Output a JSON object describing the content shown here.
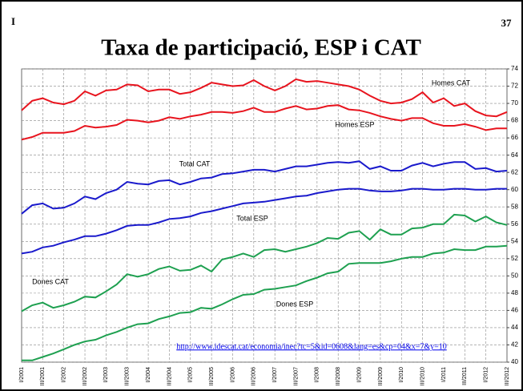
{
  "slide_marker": "I",
  "page_number": "37",
  "chart_data": {
    "type": "line",
    "title": "Taxa de participació, ESP i CAT",
    "source_url": "http://www.idescat.cat/economia/inec?tc=5&id=0608&lang=es&cp=04&x=7&y=10",
    "categories": [
      "I/2001",
      null,
      "III/2001",
      null,
      "I/2002",
      null,
      "III/2002",
      null,
      "I/2003",
      null,
      "III/2003",
      null,
      "I/2004",
      null,
      "III/2004",
      null,
      "I/2005",
      null,
      "III/2005",
      null,
      "I/2006",
      null,
      "III/2006",
      null,
      "I/2007",
      null,
      "III/2007",
      null,
      "I/2008",
      null,
      "III/2008",
      null,
      "I/2009",
      null,
      "III/2009",
      null,
      "I/2010",
      null,
      "III/2010",
      null,
      "I/2011",
      null,
      "III/2011",
      null,
      "I/2012",
      null,
      "III/2012"
    ],
    "series": [
      {
        "name": "Homes CAT",
        "color": "#e8141e",
        "values": [
          69.2,
          70.3,
          70.6,
          70.1,
          69.9,
          70.3,
          71.4,
          70.9,
          71.5,
          71.6,
          72.2,
          72.1,
          71.4,
          71.6,
          71.6,
          71.1,
          71.3,
          71.8,
          72.4,
          72.2,
          72.0,
          72.1,
          72.7,
          72.0,
          71.5,
          72.0,
          72.8,
          72.5,
          72.6,
          72.4,
          72.2,
          72.0,
          71.6,
          70.9,
          70.3,
          70.0,
          70.1,
          70.5,
          71.3,
          70.1,
          70.6,
          69.7,
          70.0,
          69.1,
          68.6,
          68.5,
          69.0
        ]
      },
      {
        "name": "Homes ESP",
        "color": "#e8141e",
        "values": [
          65.8,
          66.1,
          66.6,
          66.6,
          66.6,
          66.8,
          67.4,
          67.2,
          67.3,
          67.5,
          68.1,
          68.0,
          67.8,
          68.0,
          68.4,
          68.2,
          68.5,
          68.7,
          69.0,
          69.0,
          68.9,
          69.1,
          69.5,
          69.0,
          69.0,
          69.4,
          69.7,
          69.3,
          69.4,
          69.7,
          69.8,
          69.3,
          69.2,
          68.9,
          68.5,
          68.2,
          68.0,
          68.3,
          68.3,
          67.7,
          67.4,
          67.4,
          67.6,
          67.3,
          66.9,
          67.1,
          67.1
        ]
      },
      {
        "name": "Total CAT",
        "color": "#1a1acc",
        "values": [
          57.2,
          58.2,
          58.4,
          57.8,
          57.9,
          58.4,
          59.2,
          58.9,
          59.6,
          60.0,
          60.9,
          60.7,
          60.6,
          61.0,
          61.1,
          60.6,
          60.9,
          61.3,
          61.4,
          61.8,
          61.9,
          62.1,
          62.3,
          62.3,
          62.1,
          62.4,
          62.7,
          62.7,
          62.9,
          63.1,
          63.2,
          63.1,
          63.3,
          62.4,
          62.7,
          62.2,
          62.2,
          62.8,
          63.1,
          62.7,
          63.0,
          63.2,
          63.2,
          62.4,
          62.5,
          62.1,
          62.2
        ]
      },
      {
        "name": "Total ESP",
        "color": "#1a1acc",
        "values": [
          52.6,
          52.8,
          53.3,
          53.5,
          53.9,
          54.2,
          54.6,
          54.6,
          54.9,
          55.3,
          55.8,
          55.9,
          55.9,
          56.2,
          56.6,
          56.7,
          56.9,
          57.3,
          57.5,
          57.8,
          58.1,
          58.4,
          58.5,
          58.6,
          58.8,
          59.0,
          59.2,
          59.3,
          59.6,
          59.8,
          60.0,
          60.1,
          60.1,
          59.9,
          59.8,
          59.8,
          59.9,
          60.1,
          60.1,
          60.0,
          60.0,
          60.1,
          60.1,
          60.0,
          60.0,
          60.1,
          60.1
        ]
      },
      {
        "name": "Dones CAT",
        "color": "#1ea050",
        "values": [
          45.9,
          46.6,
          46.9,
          46.3,
          46.6,
          47.0,
          47.6,
          47.5,
          48.2,
          49.0,
          50.2,
          49.9,
          50.2,
          50.8,
          51.1,
          50.6,
          50.7,
          51.2,
          50.5,
          51.9,
          52.2,
          52.6,
          52.2,
          53.0,
          53.1,
          52.8,
          53.1,
          53.4,
          53.8,
          54.4,
          54.3,
          55.0,
          55.2,
          54.2,
          55.4,
          54.8,
          54.8,
          55.5,
          55.6,
          56.0,
          56.0,
          57.1,
          57.0,
          56.3,
          56.9,
          56.2,
          55.9
        ]
      },
      {
        "name": "Dones ESP",
        "color": "#1ea050",
        "values": [
          40.2,
          40.2,
          40.6,
          41.0,
          41.5,
          42.0,
          42.4,
          42.6,
          43.1,
          43.5,
          44.0,
          44.4,
          44.5,
          45.0,
          45.3,
          45.7,
          45.8,
          46.3,
          46.2,
          46.7,
          47.3,
          47.8,
          47.9,
          48.4,
          48.5,
          48.7,
          48.9,
          49.4,
          49.8,
          50.3,
          50.5,
          51.4,
          51.5,
          51.5,
          51.5,
          51.7,
          52.0,
          52.2,
          52.2,
          52.6,
          52.7,
          53.1,
          53.0,
          53.0,
          53.4,
          53.4,
          53.5
        ]
      }
    ],
    "ylim": [
      40,
      74
    ],
    "yticks": [
      40,
      42,
      44,
      46,
      48,
      50,
      52,
      54,
      56,
      58,
      60,
      62,
      64,
      66,
      68,
      70,
      72,
      74
    ],
    "grid": true
  }
}
